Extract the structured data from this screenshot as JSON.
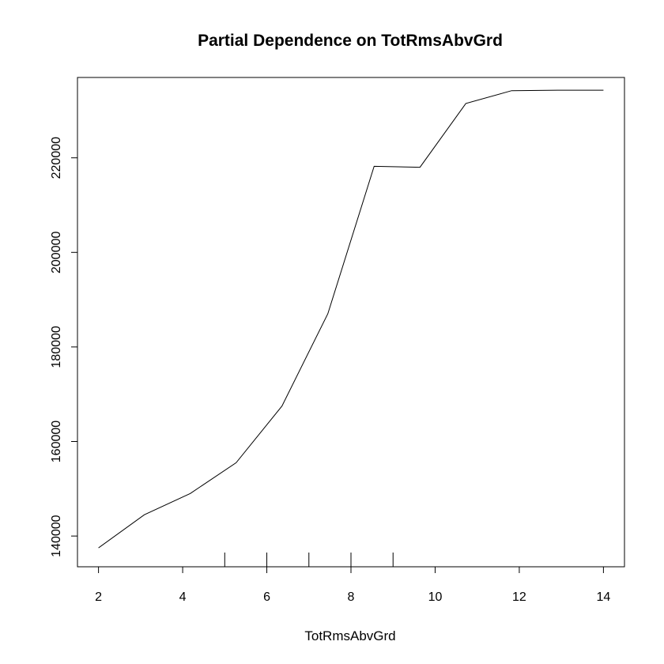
{
  "chart_data": {
    "type": "line",
    "title": "Partial Dependence on TotRmsAbvGrd",
    "xlabel": "TotRmsAbvGrd",
    "ylabel": "",
    "xlim": [
      1.5,
      14.5
    ],
    "ylim": [
      133500,
      237000
    ],
    "xticks": [
      "2",
      "4",
      "6",
      "8",
      "10",
      "12",
      "14"
    ],
    "yticks": [
      "140000",
      "160000",
      "180000",
      "200000",
      "220000"
    ],
    "series": [
      {
        "x": [
          2,
          3.09,
          4.18,
          5.27,
          6.36,
          7.45,
          8.55,
          9.64,
          10.73,
          11.82,
          12.91,
          14
        ],
        "y": [
          137500,
          144500,
          149000,
          155500,
          167500,
          187000,
          218200,
          218000,
          231500,
          234200,
          234300,
          234300
        ]
      }
    ],
    "rug": [
      5,
      6,
      7,
      8,
      9
    ],
    "grid": false
  }
}
